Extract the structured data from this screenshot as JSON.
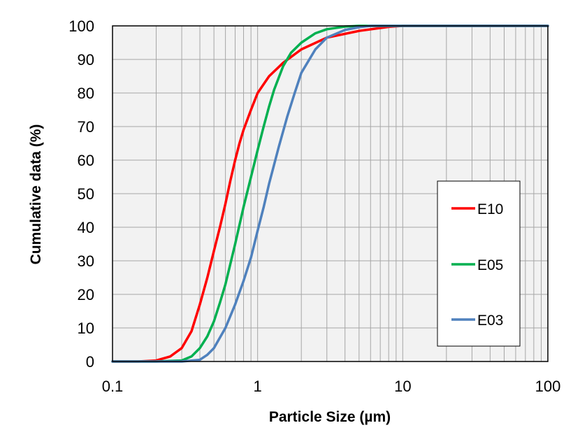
{
  "chart_data": {
    "type": "line",
    "title": "",
    "xlabel": "Particle Size  (µm)",
    "ylabel": "Cumulative data  (%)",
    "x_scale": "log",
    "xlim": [
      0.1,
      100
    ],
    "ylim": [
      0,
      100
    ],
    "x_ticks": [
      0.1,
      1,
      10,
      100
    ],
    "x_tick_labels": [
      "0.1",
      "1",
      "10",
      "100"
    ],
    "y_ticks": [
      0,
      10,
      20,
      30,
      40,
      50,
      60,
      70,
      80,
      90,
      100
    ],
    "y_tick_labels": [
      "0",
      "10",
      "20",
      "30",
      "40",
      "50",
      "60",
      "70",
      "80",
      "90",
      "100"
    ],
    "grid": true,
    "plot_background": "#f2f2f2",
    "legend_position": "right",
    "series": [
      {
        "name": "E10",
        "color": "#ff0000",
        "x": [
          0.1,
          0.15,
          0.2,
          0.25,
          0.3,
          0.35,
          0.4,
          0.45,
          0.5,
          0.55,
          0.6,
          0.65,
          0.7,
          0.75,
          0.8,
          0.9,
          1.0,
          1.2,
          1.5,
          2.0,
          3.0,
          5.0,
          8.0,
          10,
          100
        ],
        "y": [
          0,
          0,
          0.3,
          1.5,
          4,
          9,
          17,
          25,
          33,
          40,
          47,
          54,
          60,
          65,
          69,
          75,
          80,
          85,
          89,
          93,
          96.5,
          98.5,
          99.7,
          100,
          100
        ]
      },
      {
        "name": "E05",
        "color": "#00b050",
        "x": [
          0.1,
          0.2,
          0.3,
          0.35,
          0.4,
          0.45,
          0.5,
          0.55,
          0.6,
          0.7,
          0.8,
          0.9,
          1.0,
          1.1,
          1.2,
          1.3,
          1.5,
          1.7,
          2.0,
          2.5,
          3.0,
          4.0,
          5.0,
          10,
          100
        ],
        "y": [
          0,
          0,
          0.3,
          1.5,
          4,
          7.5,
          12,
          17.5,
          23,
          35,
          46,
          55,
          63,
          70,
          76,
          81,
          88,
          92,
          95,
          97.8,
          99,
          99.8,
          100,
          100,
          100
        ]
      },
      {
        "name": "E03",
        "color": "#4f81bd",
        "x": [
          0.1,
          0.3,
          0.4,
          0.45,
          0.5,
          0.6,
          0.7,
          0.8,
          0.9,
          1.0,
          1.1,
          1.2,
          1.4,
          1.6,
          1.8,
          2.0,
          2.5,
          3.0,
          4.0,
          5.0,
          6.0,
          10,
          100
        ],
        "y": [
          0,
          0,
          0.5,
          2,
          4,
          10,
          17,
          24,
          31,
          39,
          46,
          53,
          64,
          73,
          80,
          86,
          93,
          96.5,
          98.8,
          99.6,
          100,
          100,
          100
        ]
      }
    ]
  }
}
